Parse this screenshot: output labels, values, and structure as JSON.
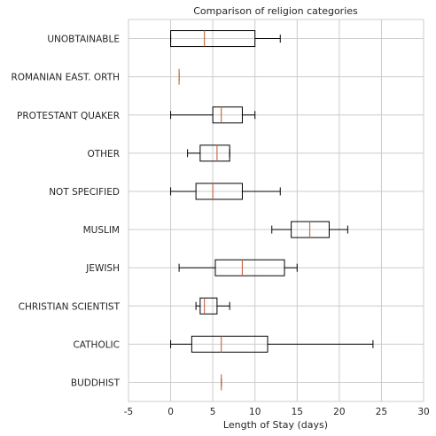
{
  "chart_data": {
    "type": "box",
    "orientation": "horizontal",
    "title": "Comparison of religion categories",
    "xlabel": "Length of Stay (days)",
    "ylabel": "",
    "xlim": [
      -5,
      30
    ],
    "xticks": [
      -5,
      0,
      5,
      10,
      15,
      20,
      25,
      30
    ],
    "grid": true,
    "colors": {
      "box": "#000000",
      "median": "#c96f4a",
      "grid": "#cccccc",
      "axes": "#cccccc"
    },
    "categories": [
      {
        "label": "BUDDHIST",
        "whislo": 6,
        "q1": 6,
        "med": 6,
        "q3": 6,
        "whishi": 6
      },
      {
        "label": "CATHOLIC",
        "whislo": 0,
        "q1": 2.5,
        "med": 6,
        "q3": 11.5,
        "whishi": 24
      },
      {
        "label": "CHRISTIAN SCIENTIST",
        "whislo": 3,
        "q1": 3.5,
        "med": 4,
        "q3": 5.5,
        "whishi": 7
      },
      {
        "label": "JEWISH",
        "whislo": 1,
        "q1": 5.3,
        "med": 8.5,
        "q3": 13.5,
        "whishi": 15
      },
      {
        "label": "MUSLIM",
        "whislo": 12,
        "q1": 14.3,
        "med": 16.5,
        "q3": 18.8,
        "whishi": 21
      },
      {
        "label": "NOT SPECIFIED",
        "whislo": 0,
        "q1": 3,
        "med": 5,
        "q3": 8.5,
        "whishi": 13
      },
      {
        "label": "OTHER",
        "whislo": 2,
        "q1": 3.5,
        "med": 5.5,
        "q3": 7,
        "whishi": 7
      },
      {
        "label": "PROTESTANT QUAKER",
        "whislo": 0,
        "q1": 5,
        "med": 6,
        "q3": 8.5,
        "whishi": 10
      },
      {
        "label": "ROMANIAN EAST. ORTH",
        "whislo": 1,
        "q1": 1,
        "med": 1,
        "q3": 1,
        "whishi": 1
      },
      {
        "label": "UNOBTAINABLE",
        "whislo": 0,
        "q1": 0,
        "med": 4,
        "q3": 10,
        "whishi": 13
      }
    ]
  }
}
